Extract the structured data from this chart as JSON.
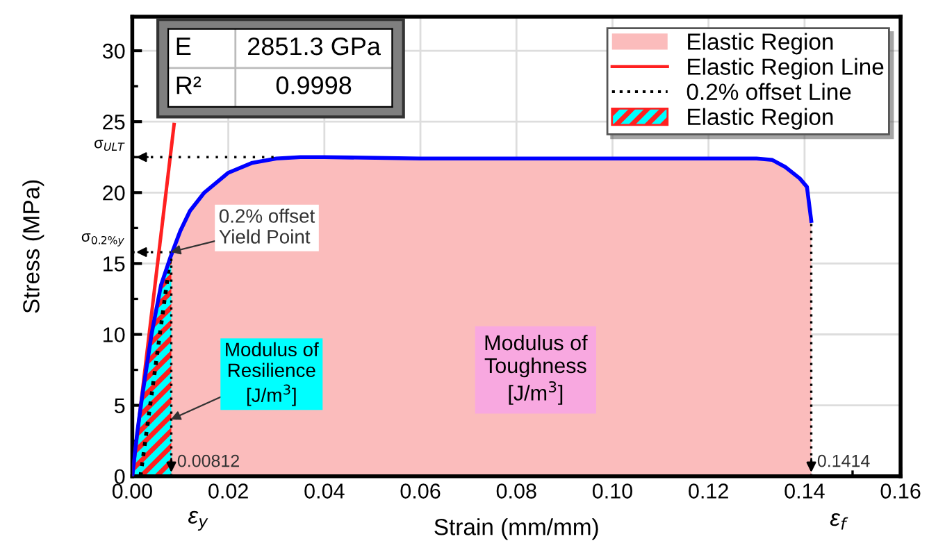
{
  "chart_data": {
    "type": "area",
    "xlabel": "Strain (mm/mm)",
    "ylabel": "Stress (MPa)",
    "xlim": [
      0,
      0.16
    ],
    "ylim": [
      0,
      32.4
    ],
    "xticks": [
      {
        "value": 0,
        "label": "0.00"
      },
      {
        "value": 0.02,
        "label": "0.02"
      },
      {
        "value": 0.04,
        "label": "0.04"
      },
      {
        "value": 0.06,
        "label": "0.06"
      },
      {
        "value": 0.08,
        "label": "0.08"
      },
      {
        "value": 0.1,
        "label": "0.10"
      },
      {
        "value": 0.12,
        "label": "0.12"
      },
      {
        "value": 0.14,
        "label": "0.14"
      },
      {
        "value": 0.16,
        "label": "0.16"
      }
    ],
    "yticks": [
      0,
      5,
      10,
      15,
      20,
      25,
      30
    ],
    "grid": true,
    "legend": "top right",
    "series": [
      {
        "name": "Elastic Region",
        "color": "#fbbcbc",
        "x": [
          0,
          0.001,
          0.002,
          0.004,
          0.006,
          0.008,
          0.01,
          0.012,
          0.015,
          0.02,
          0.025,
          0.03,
          0.035,
          0.04,
          0.06,
          0.1,
          0.13,
          0.1333,
          0.136,
          0.139,
          0.1405,
          0.1414
        ],
        "values": [
          0,
          3,
          5.5,
          10,
          13.5,
          15.5,
          17.3,
          18.7,
          20,
          21.4,
          22.1,
          22.4,
          22.5,
          22.5,
          22.4,
          22.4,
          22.4,
          22.3,
          21.8,
          21,
          20.4,
          18
        ]
      },
      {
        "name": "Elastic Region Line",
        "type": "line",
        "color": "#ff2020",
        "x": [
          0,
          0.0087
        ],
        "values": [
          0,
          24.8
        ]
      },
      {
        "name": "0.2% offset Line",
        "type": "line",
        "color": "#000000",
        "line_style": "dotted",
        "x": [
          0.0017,
          0.008
        ],
        "values": [
          0,
          15.6
        ]
      },
      {
        "name": "Elastic Region",
        "type": "area",
        "color": "#00ffff",
        "x": [
          0,
          0.001,
          0.002,
          0.004,
          0.006,
          0.008,
          0.00812
        ],
        "values": [
          0,
          3,
          5.5,
          10,
          13.5,
          15.5,
          15.6
        ]
      }
    ],
    "ref_lines": [
      {
        "axis": "y",
        "value": 22.5,
        "label": "σ$_{ULT}$"
      },
      {
        "axis": "y",
        "value": 15.8,
        "label": "σ$_{0.2%y}$"
      },
      {
        "axis": "x",
        "value": 0.00812,
        "label": "ε$_{y}$"
      },
      {
        "axis": "x",
        "value": 0.1414,
        "label": "ε$_{f}$"
      }
    ],
    "annotations": [
      "E",
      "2851.3 GPa",
      "R²",
      "0.9998",
      {
        "text": "0.2% offset\nYield Point",
        "x": 0.008,
        "y": 15.8
      },
      {
        "text": "Modulus of\nResilience\n[J/m$^{3}$]",
        "x": 0.008,
        "y": 4
      },
      "Modulus of\nToughness\n[J/m$^{3}$]",
      {
        "text": "0.00812",
        "x": 0.00812,
        "y": 0
      },
      {
        "text": "0.1414",
        "x": 0.1414,
        "y": 0
      }
    ]
  }
}
